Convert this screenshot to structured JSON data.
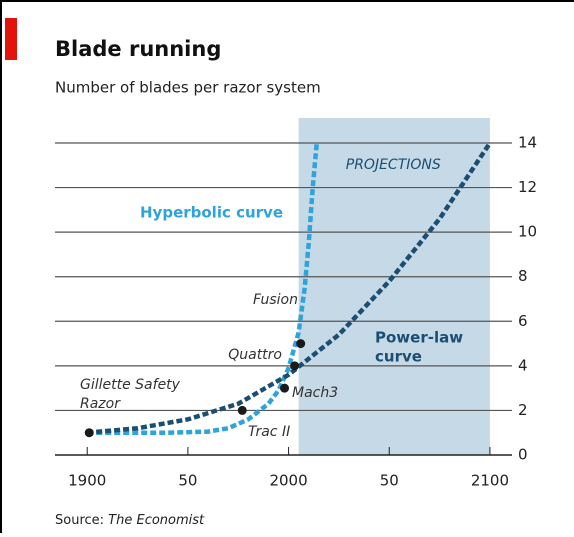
{
  "chart_data": {
    "type": "line",
    "title": "Blade running",
    "subtitle": "Number of blades per razor system",
    "shade_label": "PROJECTIONS",
    "shade_range": [
      2005,
      2100
    ],
    "xlim": [
      1884,
      2105
    ],
    "ylim": [
      0,
      14
    ],
    "yticks": [
      0,
      2,
      4,
      6,
      8,
      10,
      12,
      14
    ],
    "xticks": [
      1900,
      {
        "value": 1950,
        "label": "50"
      },
      2000,
      {
        "value": 2050,
        "label": "50"
      },
      2100
    ],
    "series": [
      {
        "name": "Hyperbolic curve",
        "color": "#2ea3dc",
        "x": [
          1900,
          1920,
          1940,
          1960,
          1970,
          1980,
          1990,
          1995,
          2000,
          2005,
          2008,
          2010,
          2012,
          2014
        ],
        "values": [
          1,
          1,
          1,
          1.05,
          1.2,
          1.6,
          2.3,
          2.9,
          3.9,
          5.5,
          7.5,
          9.5,
          12,
          14
        ]
      },
      {
        "name": [
          "Power-law",
          "curve"
        ],
        "color": "#1b4e73",
        "x": [
          1900,
          1925,
          1950,
          1975,
          2000,
          2025,
          2050,
          2075,
          2100
        ],
        "values": [
          1,
          1.2,
          1.6,
          2.3,
          3.6,
          5.4,
          7.8,
          10.6,
          14
        ]
      }
    ],
    "events": [
      {
        "label": [
          "Gillette Safety",
          "Razor"
        ],
        "x": 1901,
        "value": 1
      },
      {
        "label": [
          "Trac II"
        ],
        "x": 1977,
        "value": 2
      },
      {
        "label": [
          "Mach3"
        ],
        "x": 1998,
        "value": 3
      },
      {
        "label": [
          "Quattro"
        ],
        "x": 2003,
        "value": 4
      },
      {
        "label": [
          "Fusion"
        ],
        "x": 2006,
        "value": 5
      }
    ],
    "source_label": "Source:",
    "source": "The Economist"
  }
}
